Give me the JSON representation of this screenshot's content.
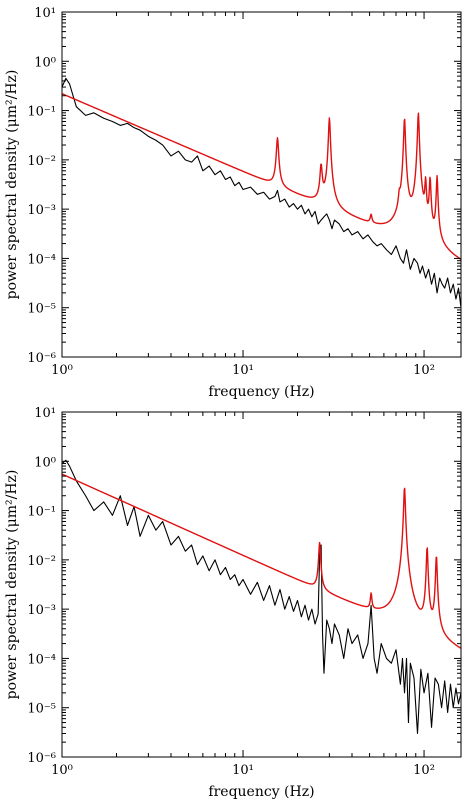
{
  "colors": {
    "data_trace": "#000000",
    "fit_curve": "#e01010",
    "axes": "#000000"
  },
  "chart_data": [
    {
      "type": "line",
      "title": "",
      "xlabel": "frequency (Hz)",
      "ylabel": "power spectral density (μm²/Hz)",
      "xscale": "log",
      "yscale": "log",
      "xlim": [
        1,
        160
      ],
      "ylim": [
        1e-06,
        10
      ],
      "x_ticks": [
        {
          "value": 1,
          "label": "10⁰"
        },
        {
          "value": 10,
          "label": "10¹"
        },
        {
          "value": 100,
          "label": "10²"
        }
      ],
      "y_ticks": [
        {
          "value": 1e-06,
          "label": "10⁻⁶"
        },
        {
          "value": 1e-05,
          "label": "10⁻⁵"
        },
        {
          "value": 0.0001,
          "label": "10⁻⁴"
        },
        {
          "value": 0.001,
          "label": "10⁻³"
        },
        {
          "value": 0.01,
          "label": "10⁻²"
        },
        {
          "value": 0.1,
          "label": "10⁻¹"
        },
        {
          "value": 1,
          "label": "10⁰"
        },
        {
          "value": 10,
          "label": "10¹"
        }
      ],
      "grid": false,
      "legend": "none",
      "series": [
        {
          "color": "#000000",
          "kind": "measured",
          "x": [
            1.0,
            1.05,
            1.1,
            1.2,
            1.35,
            1.5,
            1.7,
            1.9,
            2.1,
            2.3,
            2.5,
            2.7,
            3.0,
            3.3,
            3.6,
            4.0,
            4.4,
            4.8,
            5.2,
            5.6,
            6.0,
            6.5,
            7.0,
            7.5,
            8.0,
            8.5,
            9.0,
            9.5,
            10.0,
            11.0,
            12.0,
            13.0,
            14.0,
            15.0,
            15.5,
            16.0,
            17.0,
            18.0,
            19.0,
            20.0,
            21.0,
            22.0,
            23.0,
            24.0,
            25.0,
            26.0,
            27.0,
            28.0,
            29.0,
            30.0,
            31.0,
            32.0,
            34.0,
            36.0,
            38.0,
            40.0,
            43.0,
            46.0,
            49.0,
            52.0,
            55.0,
            58.0,
            62.0,
            66.0,
            70.0,
            74.0,
            77.0,
            80.0,
            84.0,
            88.0,
            92.0,
            95.0,
            98.0,
            102.0,
            106.0,
            110.0,
            114.0,
            118.0,
            122.0,
            126.0,
            130.0,
            135.0,
            140.0,
            145.0,
            150.0,
            155.0,
            160.0
          ],
          "y": [
            0.3,
            0.45,
            0.35,
            0.12,
            0.08,
            0.09,
            0.07,
            0.06,
            0.05,
            0.055,
            0.045,
            0.04,
            0.03,
            0.025,
            0.02,
            0.012,
            0.015,
            0.01,
            0.009,
            0.012,
            0.006,
            0.0075,
            0.005,
            0.006,
            0.004,
            0.0045,
            0.003,
            0.0035,
            0.0025,
            0.0028,
            0.002,
            0.0022,
            0.0016,
            0.0018,
            0.0024,
            0.0014,
            0.0016,
            0.0011,
            0.0013,
            0.001,
            0.0012,
            0.0008,
            0.001,
            0.0007,
            0.0009,
            0.0005,
            0.0006,
            0.0007,
            0.0008,
            0.0006,
            0.0004,
            0.0006,
            0.0005,
            0.00035,
            0.0004,
            0.0003,
            0.00035,
            0.00025,
            0.0003,
            0.00022,
            0.00018,
            0.0002,
            0.00015,
            0.00012,
            0.00018,
            0.0001,
            8e-05,
            0.00015,
            6e-05,
            0.0001,
            8e-05,
            5e-05,
            7e-05,
            4e-05,
            6e-05,
            3e-05,
            5e-05,
            2e-05,
            4e-05,
            3e-05,
            2.5e-05,
            4e-05,
            2e-05,
            3e-05,
            1.5e-05,
            2.5e-05,
            1e-05
          ]
        },
        {
          "color": "#e01010",
          "kind": "fit",
          "baseline": {
            "amplitude": 0.22,
            "exponent": 1.58
          },
          "peaks": [
            {
              "f": 15.5,
              "peak": 0.025,
              "width": 0.2
            },
            {
              "f": 27.0,
              "peak": 0.0065,
              "width": 0.35
            },
            {
              "f": 30.0,
              "peak": 0.07,
              "width": 0.3
            },
            {
              "f": 51.0,
              "peak": 0.00025,
              "width": 0.6
            },
            {
              "f": 73.0,
              "peak": 0.0009,
              "width": 0.7
            },
            {
              "f": 78.0,
              "peak": 0.07,
              "width": 0.7
            },
            {
              "f": 93.0,
              "peak": 0.09,
              "width": 0.8
            },
            {
              "f": 102.0,
              "peak": 0.0035,
              "width": 0.9
            },
            {
              "f": 108.0,
              "peak": 0.004,
              "width": 1.0
            },
            {
              "f": 118.0,
              "peak": 0.0045,
              "width": 1.0
            }
          ]
        }
      ]
    },
    {
      "type": "line",
      "title": "",
      "xlabel": "frequency (Hz)",
      "ylabel": "power spectral density (μm²/Hz)",
      "xscale": "log",
      "yscale": "log",
      "xlim": [
        1,
        160
      ],
      "ylim": [
        1e-06,
        10
      ],
      "x_ticks": [
        {
          "value": 1,
          "label": "10⁰"
        },
        {
          "value": 10,
          "label": "10¹"
        },
        {
          "value": 100,
          "label": "10²"
        }
      ],
      "y_ticks": [
        {
          "value": 1e-06,
          "label": "10⁻⁶"
        },
        {
          "value": 1e-05,
          "label": "10⁻⁵"
        },
        {
          "value": 0.0001,
          "label": "10⁻⁴"
        },
        {
          "value": 0.001,
          "label": "10⁻³"
        },
        {
          "value": 0.01,
          "label": "10⁻²"
        },
        {
          "value": 0.1,
          "label": "10⁻¹"
        },
        {
          "value": 1,
          "label": "10⁰"
        },
        {
          "value": 10,
          "label": "10¹"
        }
      ],
      "grid": false,
      "legend": "none",
      "series": [
        {
          "color": "#000000",
          "kind": "measured",
          "x": [
            1.0,
            1.05,
            1.1,
            1.2,
            1.35,
            1.5,
            1.7,
            1.9,
            2.1,
            2.3,
            2.5,
            2.7,
            3.0,
            3.3,
            3.6,
            4.0,
            4.4,
            4.8,
            5.2,
            5.6,
            6.0,
            6.5,
            7.0,
            7.5,
            8.0,
            8.5,
            9.0,
            9.5,
            10.0,
            11.0,
            12.0,
            13.0,
            14.0,
            15.0,
            16.0,
            17.0,
            18.0,
            19.0,
            20.0,
            21.0,
            22.0,
            23.0,
            24.0,
            25.0,
            26.0,
            26.5,
            27.0,
            27.5,
            28.0,
            29.0,
            30.0,
            31.0,
            32.0,
            34.0,
            36.0,
            38.0,
            40.0,
            43.0,
            46.0,
            49.0,
            51.0,
            53.0,
            55.0,
            58.0,
            62.0,
            66.0,
            70.0,
            74.0,
            76.0,
            78.0,
            80.0,
            82.0,
            84.0,
            88.0,
            92.0,
            96.0,
            100.0,
            105.0,
            110.0,
            115.0,
            120.0,
            125.0,
            130.0,
            135.0,
            140.0,
            145.0,
            150.0,
            155.0,
            160.0
          ],
          "y": [
            0.9,
            1.05,
            0.8,
            0.4,
            0.2,
            0.1,
            0.15,
            0.08,
            0.2,
            0.05,
            0.12,
            0.03,
            0.08,
            0.04,
            0.06,
            0.02,
            0.03,
            0.015,
            0.02,
            0.008,
            0.012,
            0.006,
            0.01,
            0.005,
            0.007,
            0.004,
            0.005,
            0.003,
            0.004,
            0.002,
            0.0035,
            0.0015,
            0.003,
            0.0012,
            0.0025,
            0.001,
            0.0018,
            0.0009,
            0.0015,
            0.0007,
            0.0012,
            0.0006,
            0.001,
            0.0005,
            0.0008,
            0.012,
            0.02,
            0.0003,
            5e-05,
            0.0006,
            0.0004,
            0.0002,
            0.0005,
            0.0003,
            0.0001,
            0.0004,
            0.0002,
            0.0003,
            0.0001,
            0.0002,
            0.0012,
            0.0001,
            5e-05,
            0.0002,
            0.0001,
            8e-05,
            0.00015,
            3e-05,
            0.0001,
            2e-05,
            0.0001,
            5e-06,
            8e-05,
            4e-05,
            3e-06,
            6e-05,
            2e-05,
            5e-05,
            4e-06,
            4e-05,
            3e-05,
            1e-05,
            3.5e-05,
            8e-06,
            3e-05,
            1e-05,
            2.5e-05,
            1.2e-05,
            2e-05
          ]
        },
        {
          "color": "#e01010",
          "kind": "fit",
          "baseline": {
            "amplitude": 0.55,
            "exponent": 1.65
          },
          "peaks": [
            {
              "f": 26.5,
              "peak": 0.02,
              "width": 0.3
            },
            {
              "f": 51.0,
              "peak": 0.0011,
              "width": 0.5
            },
            {
              "f": 78.0,
              "peak": 0.3,
              "width": 0.7
            },
            {
              "f": 104.0,
              "peak": 0.018,
              "width": 0.9
            },
            {
              "f": 117.0,
              "peak": 0.012,
              "width": 1.0
            }
          ]
        }
      ]
    }
  ]
}
